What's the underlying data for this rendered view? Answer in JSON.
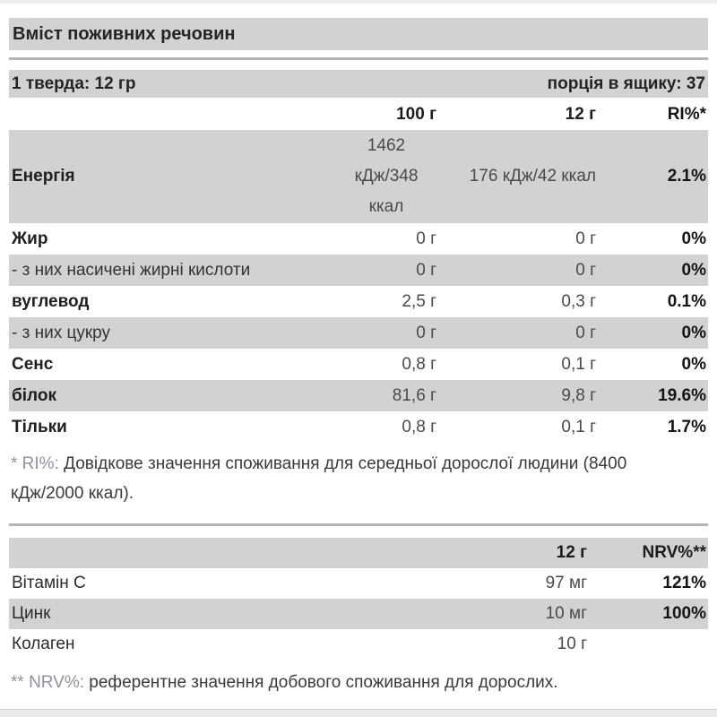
{
  "colors": {
    "row_shade": "#d2d2d2",
    "divider": "#b4b4b4",
    "footnote_marker": "#8d939c"
  },
  "header": {
    "title": "Вміст поживних речовин"
  },
  "serving_bar": {
    "left": "1 тверда: 12 гр",
    "right": "порція в ящику: 37"
  },
  "main_table": {
    "columns": {
      "c1": "100 г",
      "c2": "12 г",
      "c3": "RI%*"
    },
    "rows": [
      {
        "label": "Енергія",
        "v100": "1462 кДж/348 ккал",
        "v12": "176 кДж/42 ккал",
        "ri": "2.1%"
      },
      {
        "label": "Жир",
        "v100": "0 г",
        "v12": "0 г",
        "ri": "0%"
      },
      {
        "label": "- з них насичені жирні кислоти",
        "v100": "0 г",
        "v12": "0 г",
        "ri": "0%"
      },
      {
        "label": "вуглевод",
        "v100": "2,5 г",
        "v12": "0,3 г",
        "ri": "0.1%"
      },
      {
        "label": "- з них цукру",
        "v100": "0 г",
        "v12": "0 г",
        "ri": "0%"
      },
      {
        "label": "Сенс",
        "v100": "0,8 г",
        "v12": "0,1 г",
        "ri": "0%"
      },
      {
        "label": "білок",
        "v100": "81,6 г",
        "v12": "9,8 г",
        "ri": "19.6%"
      },
      {
        "label": "Тільки",
        "v100": "0,8 г",
        "v12": "0,1 г",
        "ri": "1.7%"
      }
    ],
    "footnote": {
      "marker": "* RI%:",
      "text": "Довідкове значення споживання для середньої дорослої людини (8400 кДж/2000 ккал)."
    }
  },
  "vitamin_table": {
    "columns": {
      "c1": "12 г",
      "c2": "NRV%**"
    },
    "rows": [
      {
        "label": "Вітамін C",
        "v12": "97 мг",
        "nrv": "121%"
      },
      {
        "label": "Цинк",
        "v12": "10 мг",
        "nrv": "100%"
      },
      {
        "label": "Колаген",
        "v12": "10 г",
        "nrv": ""
      }
    ],
    "footnote": {
      "marker": "** NRV%:",
      "text": "референтне значення добового споживання для дорослих."
    }
  }
}
